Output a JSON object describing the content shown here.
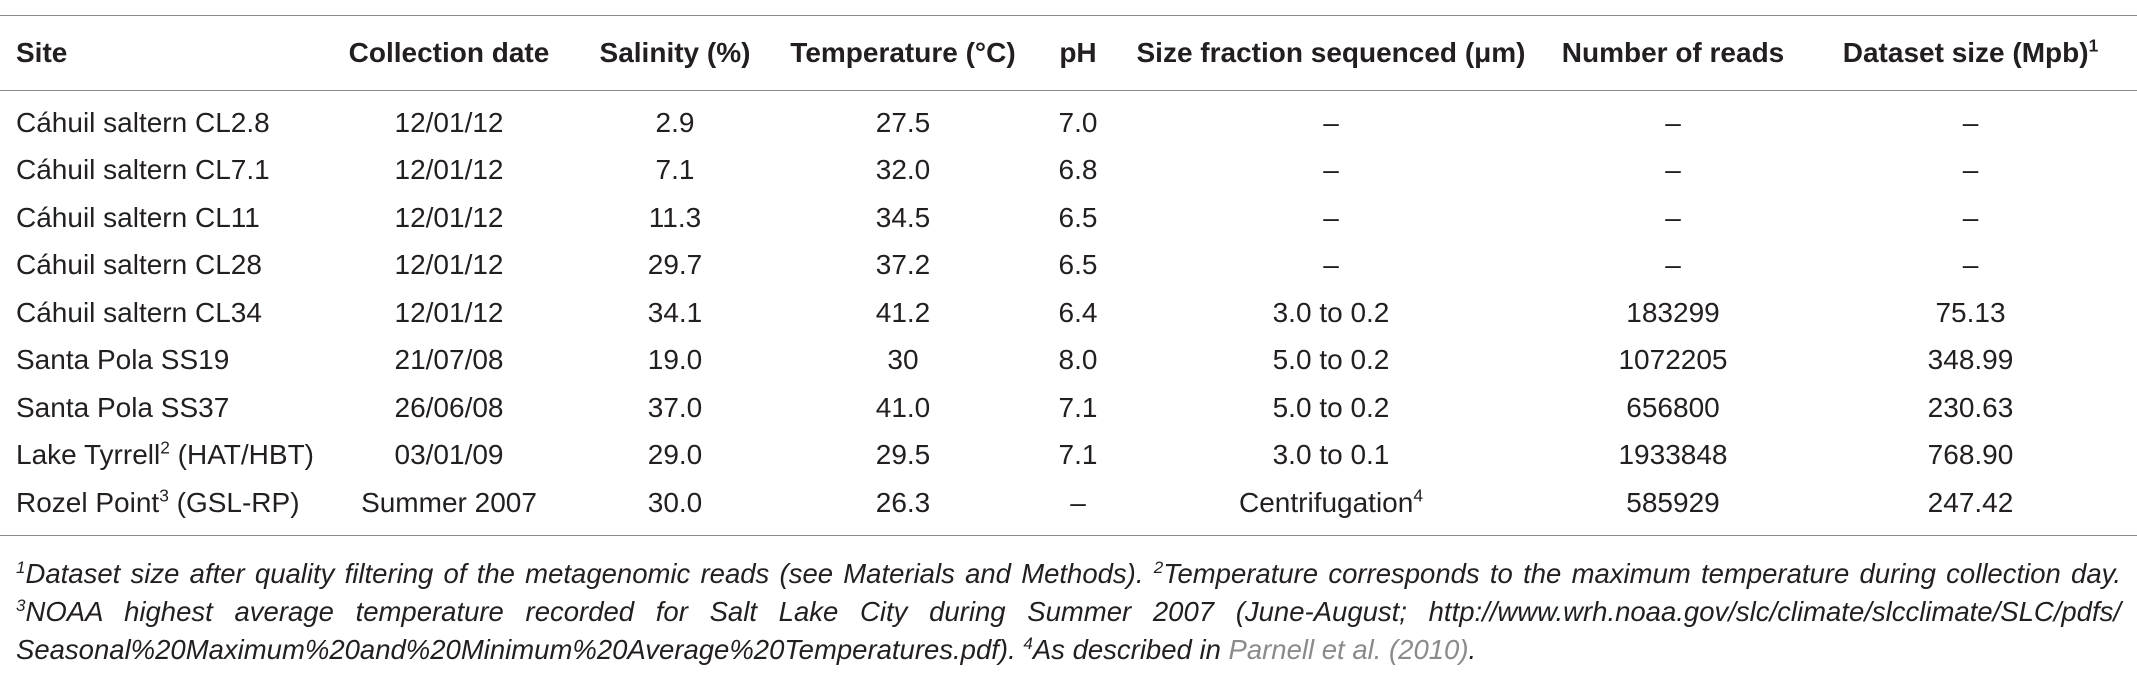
{
  "headers": [
    {
      "text": "Site"
    },
    {
      "text": "Collection date"
    },
    {
      "text": "Salinity (%)"
    },
    {
      "text": "Temperature (°C)"
    },
    {
      "text": "pH"
    },
    {
      "text": "Size fraction sequenced (μm)"
    },
    {
      "text": "Number of reads"
    },
    {
      "text": "Dataset size (Mpb)",
      "sup": "1"
    }
  ],
  "rows": [
    {
      "site": "Cáhuil saltern CL2.8",
      "site_sup": "",
      "site_rest": "",
      "date": "12/01/12",
      "salinity": "2.9",
      "temperature": "27.5",
      "ph": "7.0",
      "size_fraction": "–",
      "size_sup": "",
      "reads": "–",
      "dataset": "–"
    },
    {
      "site": "Cáhuil saltern CL7.1",
      "site_sup": "",
      "site_rest": "",
      "date": "12/01/12",
      "salinity": "7.1",
      "temperature": "32.0",
      "ph": "6.8",
      "size_fraction": "–",
      "size_sup": "",
      "reads": "–",
      "dataset": "–"
    },
    {
      "site": "Cáhuil saltern CL11",
      "site_sup": "",
      "site_rest": "",
      "date": "12/01/12",
      "salinity": "11.3",
      "temperature": "34.5",
      "ph": "6.5",
      "size_fraction": "–",
      "size_sup": "",
      "reads": "–",
      "dataset": "–"
    },
    {
      "site": "Cáhuil saltern CL28",
      "site_sup": "",
      "site_rest": "",
      "date": "12/01/12",
      "salinity": "29.7",
      "temperature": "37.2",
      "ph": "6.5",
      "size_fraction": "–",
      "size_sup": "",
      "reads": "–",
      "dataset": "–"
    },
    {
      "site": "Cáhuil saltern CL34",
      "site_sup": "",
      "site_rest": "",
      "date": "12/01/12",
      "salinity": "34.1",
      "temperature": "41.2",
      "ph": "6.4",
      "size_fraction": "3.0 to 0.2",
      "size_sup": "",
      "reads": "183299",
      "dataset": "75.13"
    },
    {
      "site": "Santa Pola SS19",
      "site_sup": "",
      "site_rest": "",
      "date": "21/07/08",
      "salinity": "19.0",
      "temperature": "30",
      "ph": "8.0",
      "size_fraction": "5.0 to 0.2",
      "size_sup": "",
      "reads": "1072205",
      "dataset": "348.99"
    },
    {
      "site": "Santa Pola SS37",
      "site_sup": "",
      "site_rest": "",
      "date": "26/06/08",
      "salinity": "37.0",
      "temperature": "41.0",
      "ph": "7.1",
      "size_fraction": "5.0 to 0.2",
      "size_sup": "",
      "reads": "656800",
      "dataset": "230.63"
    },
    {
      "site": "Lake Tyrrell",
      "site_sup": "2",
      "site_rest": " (HAT/HBT)",
      "date": "03/01/09",
      "salinity": "29.0",
      "temperature": "29.5",
      "ph": "7.1",
      "size_fraction": "3.0 to 0.1",
      "size_sup": "",
      "reads": "1933848",
      "dataset": "768.90"
    },
    {
      "site": "Rozel Point",
      "site_sup": "3",
      "site_rest": " (GSL-RP)",
      "date": "Summer 2007",
      "salinity": "30.0",
      "temperature": "26.3",
      "ph": "–",
      "size_fraction": "Centrifugation",
      "size_sup": "4",
      "reads": "585929",
      "dataset": "247.42"
    }
  ],
  "footnotes": {
    "n1": "1",
    "t1": "Dataset size after quality filtering of the metagenomic reads (see Materials and Methods). ",
    "n2": "2",
    "t2": "Temperature corresponds to the maximum temperature during collection day. ",
    "n3": "3",
    "t3": "NOAA highest average temperature recorded for Salt Lake City during Summer 2007 (June-August; http://www.wrh.noaa.gov/slc/climate/slcclimate/SLC/pdfs/ Seasonal%20Maximum%20and%20Minimum%20Average%20Temperatures.pdf). ",
    "n4": "4",
    "t4": "As described in ",
    "citation": "Parnell et al. (2010)",
    "t5": "."
  }
}
